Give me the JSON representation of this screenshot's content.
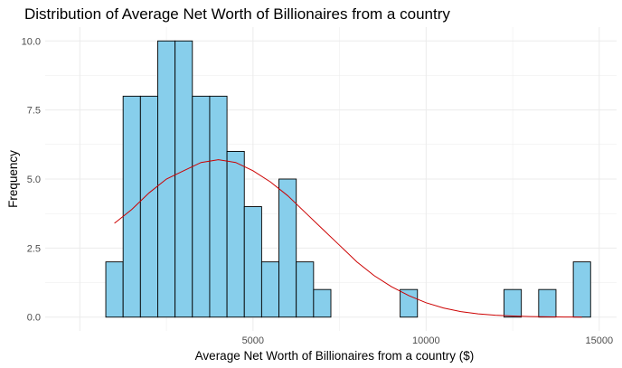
{
  "chart_data": {
    "type": "bar",
    "title": "Distribution of Average Net Worth of Billionaires from a country",
    "xlabel": "Average Net Worth of Billionaires from a country ($)",
    "ylabel": "Frequency",
    "xlim": [
      -1000,
      15500
    ],
    "ylim": [
      -0.5,
      10.5
    ],
    "x_ticks": [
      5000,
      10000,
      15000
    ],
    "x_tick_labels": [
      "5000",
      "10000",
      "15000"
    ],
    "y_ticks": [
      0,
      2.5,
      5,
      7.5,
      10
    ],
    "y_tick_labels": [
      "0.0",
      "2.5",
      "5.0",
      "7.5",
      "10.0"
    ],
    "grid": true,
    "legend": "none",
    "bin_width": 500,
    "bins": [
      {
        "start": 750,
        "end": 1250,
        "count": 2
      },
      {
        "start": 1250,
        "end": 1750,
        "count": 8
      },
      {
        "start": 1750,
        "end": 2250,
        "count": 8
      },
      {
        "start": 2250,
        "end": 2750,
        "count": 10
      },
      {
        "start": 2750,
        "end": 3250,
        "count": 10
      },
      {
        "start": 3250,
        "end": 3750,
        "count": 8
      },
      {
        "start": 3750,
        "end": 4250,
        "count": 8
      },
      {
        "start": 4250,
        "end": 4750,
        "count": 6
      },
      {
        "start": 4750,
        "end": 5250,
        "count": 4
      },
      {
        "start": 5250,
        "end": 5750,
        "count": 2
      },
      {
        "start": 5750,
        "end": 6250,
        "count": 5
      },
      {
        "start": 6250,
        "end": 6750,
        "count": 2
      },
      {
        "start": 6750,
        "end": 7250,
        "count": 1
      },
      {
        "start": 9250,
        "end": 9750,
        "count": 1
      },
      {
        "start": 12250,
        "end": 12750,
        "count": 1
      },
      {
        "start": 13250,
        "end": 13750,
        "count": 1
      },
      {
        "start": 14250,
        "end": 14750,
        "count": 2
      }
    ],
    "density_curve": {
      "x": [
        1000,
        1500,
        2000,
        2500,
        3000,
        3500,
        4000,
        4500,
        5000,
        5500,
        6000,
        6500,
        7000,
        7500,
        8000,
        8500,
        9000,
        9500,
        10000,
        10500,
        11000,
        11500,
        12000,
        12500,
        13000,
        13500,
        14000,
        14500
      ],
      "y": [
        3.4,
        3.9,
        4.5,
        5.0,
        5.3,
        5.6,
        5.7,
        5.6,
        5.3,
        4.9,
        4.4,
        3.8,
        3.2,
        2.6,
        2.0,
        1.5,
        1.1,
        0.78,
        0.52,
        0.33,
        0.2,
        0.12,
        0.07,
        0.04,
        0.02,
        0.01,
        0.005,
        0.002
      ]
    },
    "colors": {
      "bar_fill": "#87ceeb",
      "bar_outline": "#000000",
      "curve": "#cc0000",
      "grid": "#ebebeb",
      "tick_text": "#4d4d4d"
    }
  }
}
